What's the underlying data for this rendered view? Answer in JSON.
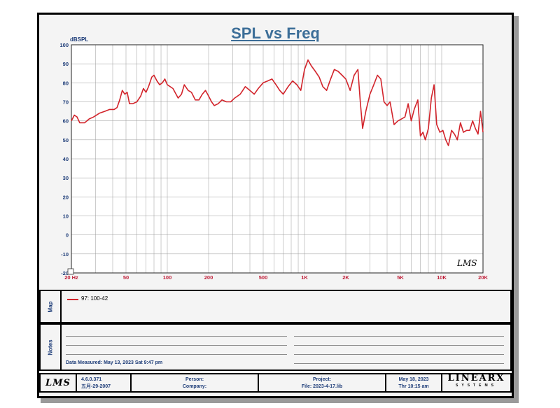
{
  "chart_data": {
    "type": "line",
    "title": "SPL vs Freq",
    "ylabel": "dBSPL",
    "xlabel": "",
    "x_scale": "log",
    "xlim": [
      20,
      20000
    ],
    "ylim": [
      -20,
      100
    ],
    "y_ticks": [
      100,
      90,
      80,
      70,
      60,
      50,
      40,
      30,
      20,
      10,
      0,
      -10,
      -20
    ],
    "x_ticks": [
      {
        "value": 20,
        "label": "20 Hz"
      },
      {
        "value": 50,
        "label": "50"
      },
      {
        "value": 100,
        "label": "100"
      },
      {
        "value": 200,
        "label": "200"
      },
      {
        "value": 500,
        "label": "500"
      },
      {
        "value": 1000,
        "label": "1K"
      },
      {
        "value": 2000,
        "label": "2K"
      },
      {
        "value": 5000,
        "label": "5K"
      },
      {
        "value": 10000,
        "label": "10K"
      },
      {
        "value": 20000,
        "label": "20K"
      }
    ],
    "grid": true,
    "watermark": "LMS",
    "series": [
      {
        "name": "97: 100-42",
        "color": "#d2242b",
        "points": [
          [
            20,
            60
          ],
          [
            21,
            63
          ],
          [
            22,
            62
          ],
          [
            23,
            59
          ],
          [
            25,
            59
          ],
          [
            27,
            61
          ],
          [
            29,
            62
          ],
          [
            32,
            64
          ],
          [
            35,
            65
          ],
          [
            38,
            66
          ],
          [
            41,
            66
          ],
          [
            43,
            67
          ],
          [
            45,
            71
          ],
          [
            47,
            76
          ],
          [
            49,
            74
          ],
          [
            51,
            75
          ],
          [
            53,
            69
          ],
          [
            56,
            69
          ],
          [
            60,
            70
          ],
          [
            64,
            73
          ],
          [
            67,
            77
          ],
          [
            70,
            75
          ],
          [
            73,
            78
          ],
          [
            77,
            83
          ],
          [
            80,
            84
          ],
          [
            84,
            81
          ],
          [
            88,
            79
          ],
          [
            92,
            80
          ],
          [
            96,
            82
          ],
          [
            100,
            79
          ],
          [
            110,
            77
          ],
          [
            120,
            72
          ],
          [
            127,
            74
          ],
          [
            133,
            79
          ],
          [
            142,
            76
          ],
          [
            150,
            75
          ],
          [
            160,
            71
          ],
          [
            170,
            71
          ],
          [
            180,
            74
          ],
          [
            190,
            76
          ],
          [
            200,
            73
          ],
          [
            210,
            70
          ],
          [
            220,
            68
          ],
          [
            235,
            69
          ],
          [
            250,
            71
          ],
          [
            270,
            70
          ],
          [
            290,
            70
          ],
          [
            310,
            72
          ],
          [
            340,
            74
          ],
          [
            370,
            78
          ],
          [
            400,
            76
          ],
          [
            430,
            74
          ],
          [
            460,
            77
          ],
          [
            500,
            80
          ],
          [
            540,
            81
          ],
          [
            580,
            82
          ],
          [
            620,
            79
          ],
          [
            660,
            76
          ],
          [
            700,
            74
          ],
          [
            760,
            78
          ],
          [
            820,
            81
          ],
          [
            880,
            79
          ],
          [
            940,
            76
          ],
          [
            1000,
            87
          ],
          [
            1060,
            92
          ],
          [
            1120,
            89
          ],
          [
            1200,
            86
          ],
          [
            1280,
            83
          ],
          [
            1360,
            78
          ],
          [
            1450,
            76
          ],
          [
            1550,
            82
          ],
          [
            1650,
            87
          ],
          [
            1760,
            86
          ],
          [
            1880,
            84
          ],
          [
            2000,
            82
          ],
          [
            2150,
            76
          ],
          [
            2300,
            84
          ],
          [
            2450,
            87
          ],
          [
            2550,
            70
          ],
          [
            2650,
            56
          ],
          [
            2800,
            65
          ],
          [
            3000,
            74
          ],
          [
            3200,
            79
          ],
          [
            3400,
            84
          ],
          [
            3600,
            82
          ],
          [
            3800,
            70
          ],
          [
            4000,
            68
          ],
          [
            4200,
            70
          ],
          [
            4500,
            58
          ],
          [
            4800,
            60
          ],
          [
            5100,
            61
          ],
          [
            5400,
            62
          ],
          [
            5700,
            69
          ],
          [
            6000,
            60
          ],
          [
            6300,
            66
          ],
          [
            6700,
            71
          ],
          [
            7000,
            52
          ],
          [
            7300,
            54
          ],
          [
            7600,
            50
          ],
          [
            8000,
            56
          ],
          [
            8400,
            72
          ],
          [
            8800,
            79
          ],
          [
            9200,
            58
          ],
          [
            9700,
            54
          ],
          [
            10200,
            55
          ],
          [
            10700,
            50
          ],
          [
            11200,
            47
          ],
          [
            11800,
            55
          ],
          [
            12400,
            53
          ],
          [
            13000,
            50
          ],
          [
            13700,
            59
          ],
          [
            14400,
            54
          ],
          [
            15200,
            55
          ],
          [
            16000,
            55
          ],
          [
            16800,
            60
          ],
          [
            17600,
            56
          ],
          [
            18400,
            53
          ],
          [
            19200,
            65
          ],
          [
            20000,
            54
          ]
        ]
      }
    ]
  },
  "legend": {
    "side_label": "Map",
    "entry": "97: 100-42"
  },
  "notes": {
    "side_label": "Notes",
    "measured": "Data Measured: May 13, 2023  Sat  9:47 pm"
  },
  "footer": {
    "logo": "LMS",
    "version": "4.6.0.371",
    "build_date": "五月-29-2007",
    "person": "Person:",
    "company": "Company:",
    "project": "Project:",
    "file": "File: 2023-4-17.lib",
    "date": "May 18, 2023",
    "time": "Thr 10:15 am",
    "brand": "LINEARX",
    "brand_sub": "SYSTEMS"
  }
}
